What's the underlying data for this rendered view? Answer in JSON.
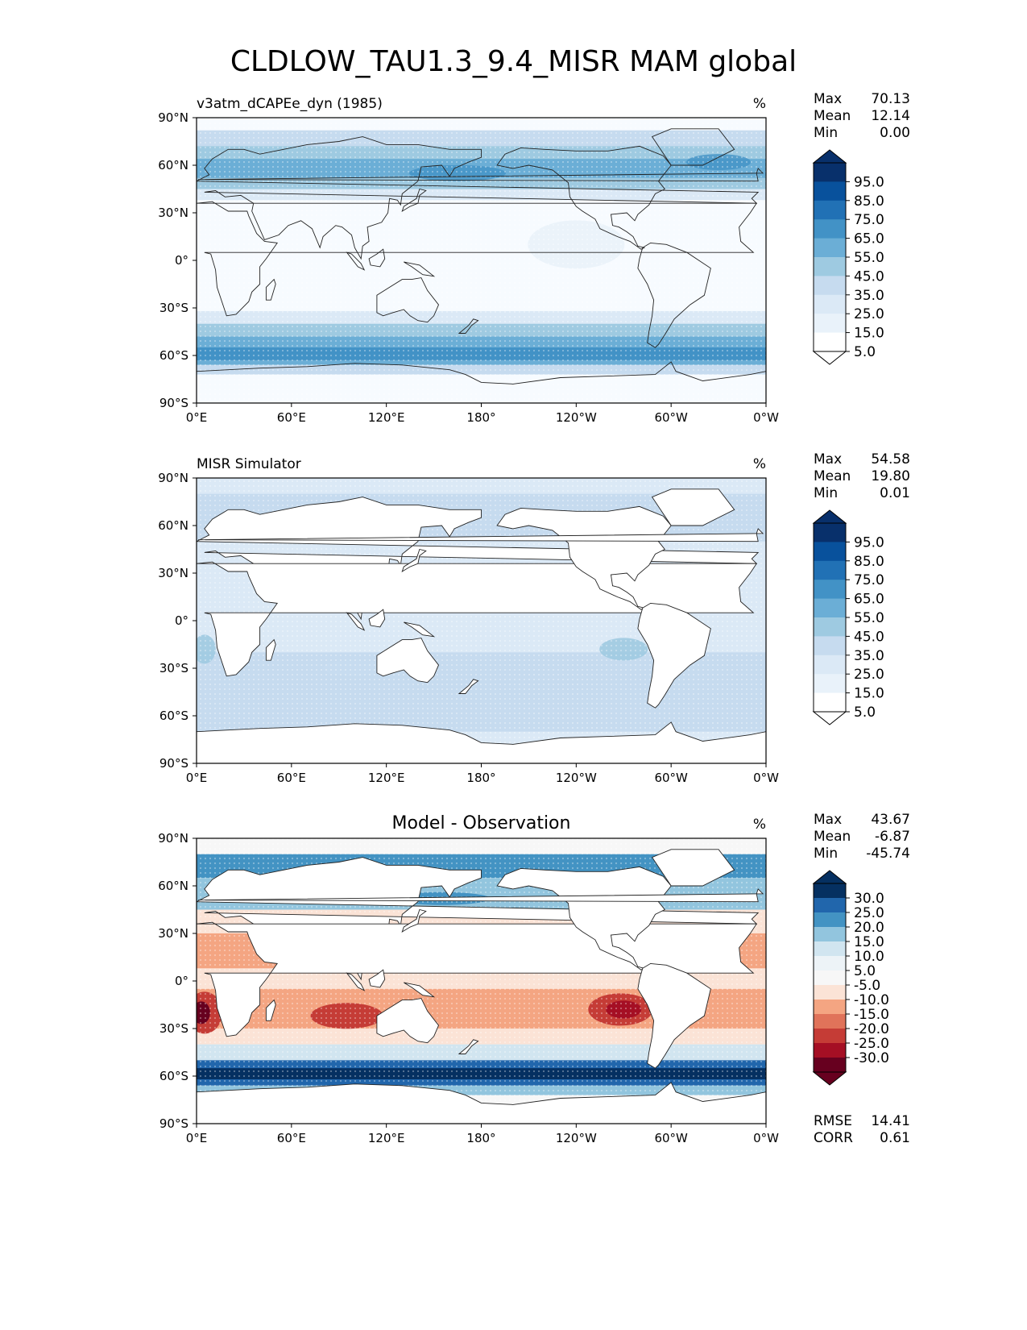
{
  "figure": {
    "title": "CLDLOW_TAU1.3_9.4_MISR MAM global"
  },
  "chart_data": [
    {
      "type": "heatmap",
      "id": "test",
      "title": "v3atm_dCAPEe_dyn (1985)",
      "units": "%",
      "stats": [
        {
          "label": "Max",
          "value": "70.13"
        },
        {
          "label": "Mean",
          "value": "12.14"
        },
        {
          "label": "Min",
          "value": "0.00"
        }
      ],
      "colorbar": {
        "extend": "both",
        "tick_labels": [
          "95.0",
          "85.0",
          "75.0",
          "65.0",
          "55.0",
          "45.0",
          "35.0",
          "25.0",
          "15.0",
          "5.0"
        ],
        "colors": [
          "#08306b",
          "#08519c",
          "#2171b5",
          "#4292c6",
          "#6baed6",
          "#9ecae1",
          "#c6dbef",
          "#dbe9f6",
          "#e9f2fa",
          "#ffffff"
        ]
      },
      "x_tick_labels": [
        "0°E",
        "60°E",
        "120°E",
        "180°",
        "120°W",
        "60°W",
        "0°W"
      ],
      "y_tick_labels": [
        "90°N",
        "60°N",
        "30°N",
        "0°",
        "30°S",
        "60°S",
        "90°S"
      ],
      "xlim": [
        0,
        360
      ],
      "ylim": [
        -90,
        90
      ],
      "field_summary": "Low cloud highest (≈45–70%) in Southern Ocean storm track (40–65°S) and North Atlantic/Pacific high latitudes (45–80°N); near 0–10% over tropics and subtropics."
    },
    {
      "type": "heatmap",
      "id": "reference",
      "title": "MISR Simulator",
      "units": "%",
      "stats": [
        {
          "label": "Max",
          "value": "54.58"
        },
        {
          "label": "Mean",
          "value": "19.80"
        },
        {
          "label": "Min",
          "value": "0.01"
        }
      ],
      "colorbar": {
        "extend": "both",
        "tick_labels": [
          "95.0",
          "85.0",
          "75.0",
          "65.0",
          "55.0",
          "45.0",
          "35.0",
          "25.0",
          "15.0",
          "5.0"
        ],
        "colors": [
          "#08306b",
          "#08519c",
          "#2171b5",
          "#4292c6",
          "#6baed6",
          "#9ecae1",
          "#c6dbef",
          "#dbe9f6",
          "#e9f2fa",
          "#ffffff"
        ]
      },
      "x_tick_labels": [
        "0°E",
        "60°E",
        "120°E",
        "180°",
        "120°W",
        "60°W",
        "0°W"
      ],
      "y_tick_labels": [
        "90°N",
        "60°N",
        "30°N",
        "0°",
        "30°S",
        "60°S",
        "90°S"
      ],
      "xlim": [
        0,
        360
      ],
      "ylim": [
        -90,
        90
      ],
      "field_summary": "Fairly uniform 15–35% over all oceans, higher (≈30–40%) in stratocumulus regions off California, Peru and Namibia; land masked."
    },
    {
      "type": "heatmap",
      "id": "difference",
      "title": "Model - Observation",
      "units": "%",
      "stats": [
        {
          "label": "Max",
          "value": "43.67"
        },
        {
          "label": "Mean",
          "value": "-6.87"
        },
        {
          "label": "Min",
          "value": "-45.74"
        }
      ],
      "colorbar": {
        "extend": "both",
        "tick_labels": [
          "30.0",
          "25.0",
          "20.0",
          "15.0",
          "10.0",
          "5.0",
          "-5.0",
          "-10.0",
          "-15.0",
          "-20.0",
          "-25.0",
          "-30.0"
        ],
        "colors": [
          "#053061",
          "#2166ac",
          "#4393c3",
          "#92c5de",
          "#d1e5f0",
          "#edf3f7",
          "#f7f7f7",
          "#fbe3d6",
          "#f4a582",
          "#e0735a",
          "#c53c36",
          "#a50f24",
          "#67001f"
        ]
      },
      "x_tick_labels": [
        "0°E",
        "60°E",
        "120°E",
        "180°",
        "120°W",
        "60°W",
        "0°W"
      ],
      "y_tick_labels": [
        "90°N",
        "60°N",
        "30°N",
        "0°",
        "30°S",
        "60°S",
        "90°S"
      ],
      "xlim": [
        0,
        360
      ],
      "ylim": [
        -90,
        90
      ],
      "footer_stats": [
        {
          "label": "RMSE",
          "value": "14.41"
        },
        {
          "label": "CORR",
          "value": "0.61"
        }
      ],
      "field_summary": "Strong negative bias (−20 to −45%) in subtropical stratocumulus decks (NE/SE Pacific, SE Atlantic, S Indian Ocean) and broad −5 to −15% over tropical oceans; positive bias (+15 to +40%) along Southern Ocean storm track and high-latitude North Atlantic/Pacific."
    }
  ]
}
